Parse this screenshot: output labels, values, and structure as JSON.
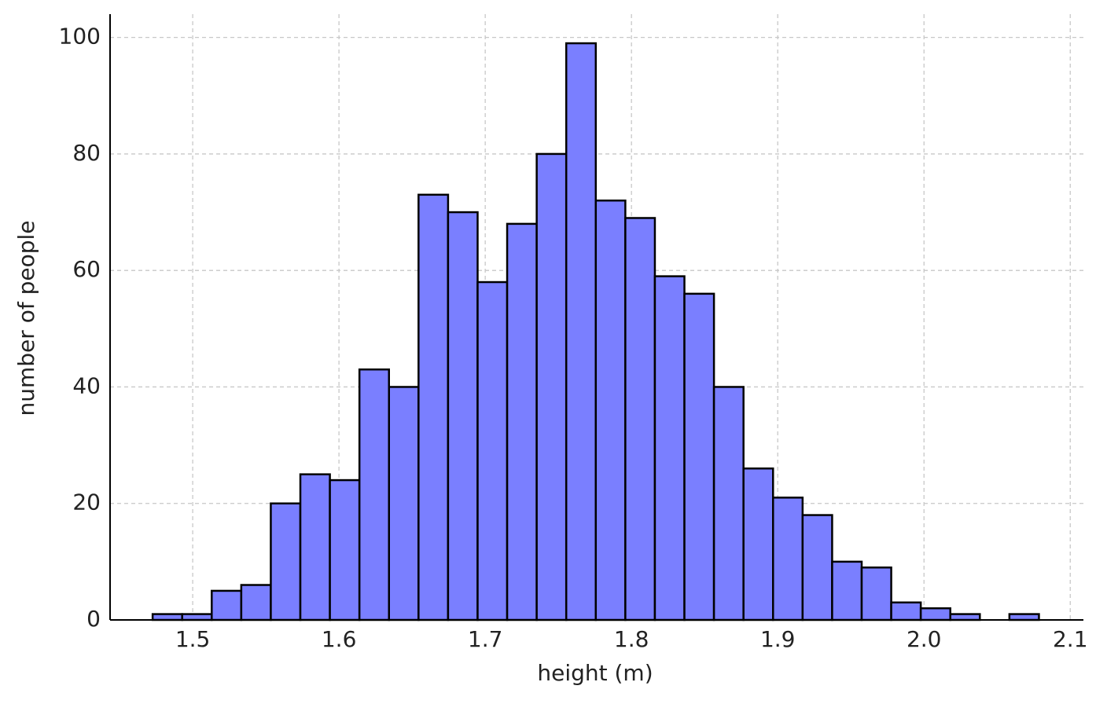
{
  "chart_data": {
    "type": "histogram",
    "x_label": "height (m)",
    "y_label": "number of people",
    "bins": [
      1.4726,
      1.4928,
      1.513,
      1.5332,
      1.5534,
      1.5736,
      1.5938,
      1.614,
      1.6342,
      1.6544,
      1.6746,
      1.6948,
      1.715,
      1.7352,
      1.7554,
      1.7756,
      1.7958,
      1.816,
      1.8362,
      1.8564,
      1.8766,
      1.8968,
      1.917,
      1.9372,
      1.9574,
      1.9776,
      1.9978,
      2.018,
      2.0382,
      2.0584,
      2.0786
    ],
    "values": [
      1,
      1,
      5,
      6,
      20,
      25,
      24,
      43,
      40,
      73,
      70,
      58,
      68,
      80,
      99,
      72,
      69,
      59,
      56,
      40,
      26,
      21,
      18,
      10,
      9,
      3,
      2,
      1,
      0,
      1
    ],
    "color": "#7a7fff",
    "edgecolor": "#000000",
    "xlim": [
      1.4435,
      2.109
    ],
    "xticks": [
      1.5,
      1.6,
      1.7,
      1.8,
      1.9,
      {
        "value": 2,
        "label": "2.0"
      },
      2.1
    ],
    "ylim": [
      0,
      104
    ],
    "yticks": [
      0,
      20,
      40,
      60,
      80,
      100
    ],
    "grid": true
  }
}
